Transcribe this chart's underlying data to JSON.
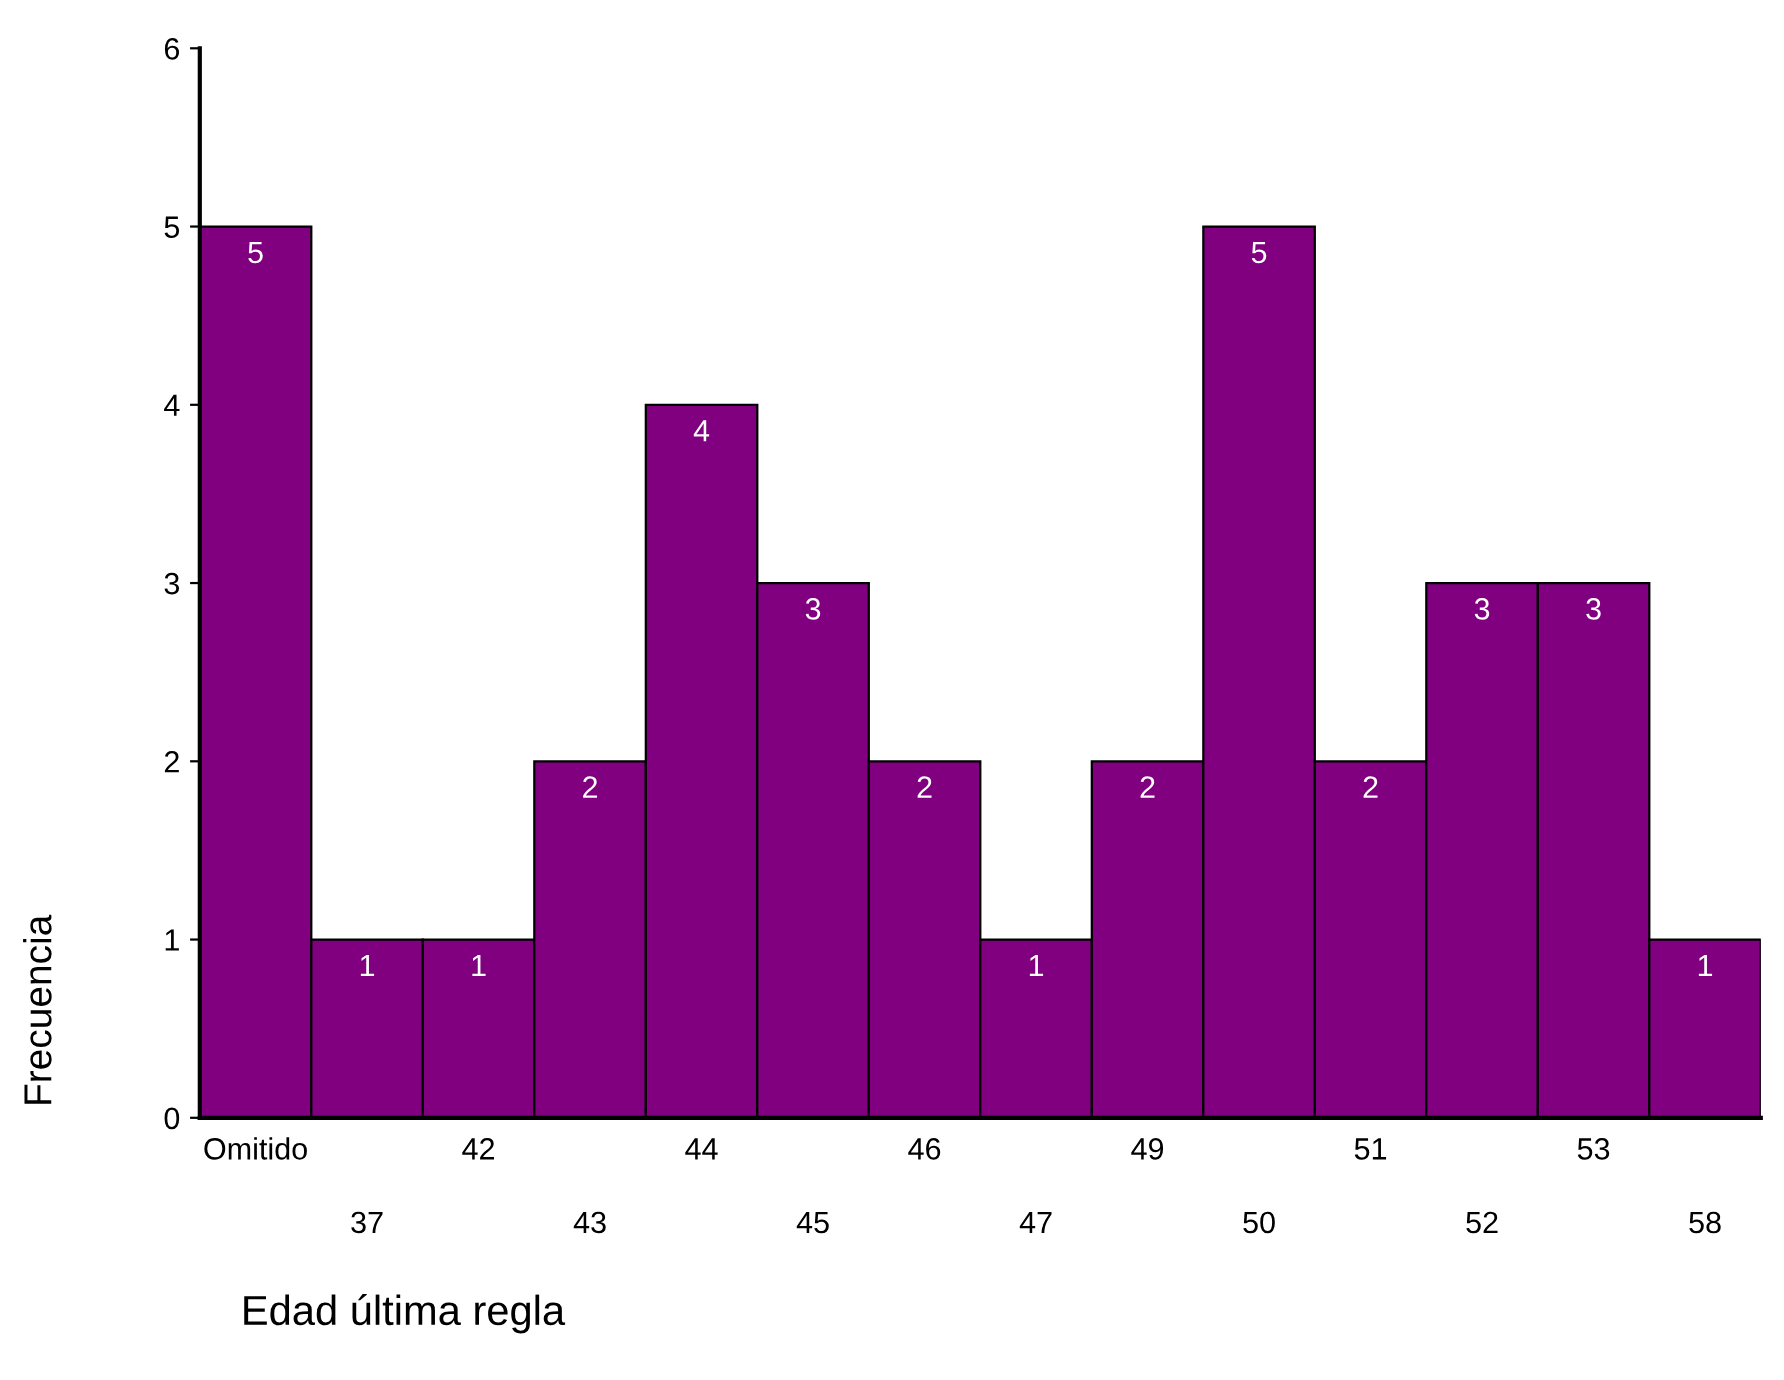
{
  "chart_data": {
    "type": "bar",
    "xlabel": "Edad última regla",
    "ylabel": "Frecuencia",
    "categories": [
      "Omitido",
      "37",
      "42",
      "43",
      "44",
      "45",
      "46",
      "47",
      "49",
      "50",
      "51",
      "52",
      "53",
      "58"
    ],
    "values": [
      5,
      1,
      1,
      2,
      4,
      3,
      2,
      1,
      2,
      5,
      2,
      3,
      3,
      1
    ],
    "color": "#800080",
    "ylim": [
      0,
      6
    ],
    "yticks": [
      0,
      1,
      2,
      3,
      4,
      5,
      6
    ],
    "grid": false,
    "data_labels": true
  }
}
